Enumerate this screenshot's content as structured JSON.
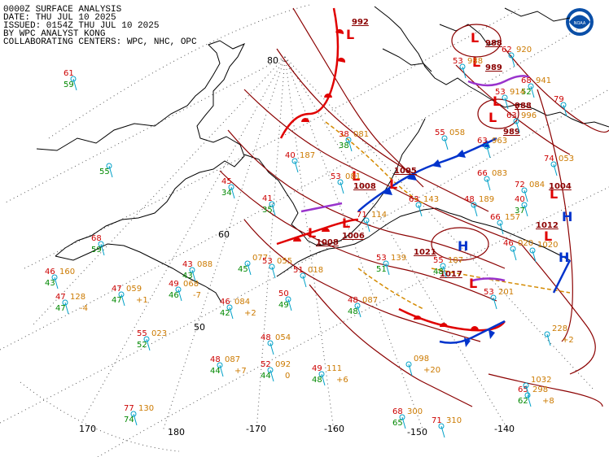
{
  "header": {
    "line1": "0000Z SURFACE ANALYSIS",
    "line2": "DATE: THU JUL 10 2025",
    "line3": "ISSUED: 0154Z THU JUL 10 2025",
    "line4": "BY WPC ANALYST KONG",
    "line5": "COLLABORATING CENTERS: WPC, NHC, OPC"
  },
  "logo": {
    "text": "NOAA"
  },
  "grid_labels": {
    "lat80": "80",
    "lat60": "60",
    "lat50": "50",
    "lon170": "170",
    "lon180": "180",
    "lonm170": "-170",
    "lonm160": "-160",
    "lonm150": "-150",
    "lonm140": "-140"
  },
  "colors": {
    "isobar": "#8b0000",
    "warm_front": "#e00000",
    "cold_front": "#0033cc",
    "occluded_front": "#9933cc",
    "trough": "#d48a00",
    "temp": "#cc0000",
    "dewpoint": "#008800",
    "pressure_obs": "#cc7a00",
    "wind": "#00a0c8"
  },
  "centers": [
    {
      "type": "L",
      "color": "#e00000",
      "pressure": "992"
    },
    {
      "type": "L",
      "color": "#e00000",
      "pressure": "988"
    },
    {
      "type": "L",
      "color": "#e00000",
      "pressure": "989"
    },
    {
      "type": "L",
      "color": "#e00000",
      "pressure": "988"
    },
    {
      "type": "L",
      "color": "#e00000",
      "pressure": "989"
    },
    {
      "type": "L",
      "color": "#e00000",
      "pressure": "1005"
    },
    {
      "type": "L",
      "color": "#e00000",
      "pressure": "1008"
    },
    {
      "type": "L",
      "color": "#e00000",
      "pressure": "1006"
    },
    {
      "type": "L",
      "color": "#e00000",
      "pressure": "1008"
    },
    {
      "type": "L",
      "color": "#e00000",
      "pressure": "1004"
    },
    {
      "type": "L",
      "color": "#e00000",
      "pressure": "1012"
    },
    {
      "type": "L",
      "color": "#e00000",
      "pressure": "1017"
    },
    {
      "type": "H",
      "color": "#0033cc",
      "pressure": "1021"
    },
    {
      "type": "H",
      "color": "#0033cc",
      "pressure": ""
    },
    {
      "type": "H",
      "color": "#0033cc",
      "pressure": ""
    }
  ],
  "obs": [
    {
      "t": "61",
      "d": "59"
    },
    {
      "t": "",
      "d": "55",
      "p": ""
    },
    {
      "t": "68",
      "d": "59"
    },
    {
      "t": "46",
      "p": "160",
      "d": "43"
    },
    {
      "t": "47",
      "p": "128",
      "d": "47",
      "tend": "-4"
    },
    {
      "t": "47",
      "p": "059",
      "d": "47",
      "tend": "+1"
    },
    {
      "t": "49",
      "p": "068",
      "d": "46",
      "tend": "-7"
    },
    {
      "t": "43",
      "p": "088",
      "d": "43"
    },
    {
      "t": "46",
      "p": "084",
      "d": "42",
      "tend": "+2"
    },
    {
      "t": "",
      "p": "077",
      "d": "45"
    },
    {
      "t": "53",
      "p": "055",
      "d": ""
    },
    {
      "t": "51",
      "p": "018",
      "d": ""
    },
    {
      "t": "50",
      "d": "49"
    },
    {
      "t": "55",
      "p": "023",
      "d": "52"
    },
    {
      "t": "48",
      "p": "087",
      "d": "44",
      "tend": "+7"
    },
    {
      "t": "48",
      "p": "054",
      "d": ""
    },
    {
      "t": "52",
      "p": "092",
      "d": "44",
      "tend": "0"
    },
    {
      "t": "49",
      "p": "111",
      "d": "48",
      "tend": "+6"
    },
    {
      "t": "48",
      "p": "087",
      "d": "48"
    },
    {
      "t": "53",
      "p": "139",
      "d": "51"
    },
    {
      "t": "",
      "p": "098",
      "d": "",
      "tend": "+20"
    },
    {
      "t": "77",
      "p": "130",
      "d": "74"
    },
    {
      "t": "68",
      "p": "300",
      "d": "65"
    },
    {
      "t": "71",
      "p": "310",
      "d": ""
    },
    {
      "t": "65",
      "p": "298",
      "d": "62",
      "tend": "+8"
    },
    {
      "t": "",
      "p": "1032",
      "d": ""
    },
    {
      "t": "",
      "p": "228",
      "d": "",
      "tend": "+2"
    },
    {
      "t": "40",
      "p": "187",
      "d": ""
    },
    {
      "t": "38",
      "p": "081",
      "d": "38"
    },
    {
      "t": "45",
      "d": "34"
    },
    {
      "t": "41",
      "d": "35"
    },
    {
      "t": "53",
      "p": "081",
      "d": ""
    },
    {
      "t": "71",
      "p": "114",
      "d": ""
    },
    {
      "t": "63",
      "p": "143",
      "d": ""
    },
    {
      "t": "48",
      "p": "189",
      "d": ""
    },
    {
      "t": "66",
      "p": "157",
      "d": ""
    },
    {
      "t": "55",
      "p": "187",
      "d": "48"
    },
    {
      "t": "53",
      "p": "201",
      "d": ""
    },
    {
      "t": "66",
      "p": "083",
      "d": ""
    },
    {
      "t": "72",
      "p": "084",
      "d": ""
    },
    {
      "t": "74",
      "p": "053",
      "d": ""
    },
    {
      "t": "63",
      "p": "963",
      "d": ""
    },
    {
      "t": "55",
      "p": "058",
      "d": ""
    },
    {
      "t": "63",
      "p": "996",
      "d": ""
    },
    {
      "t": "79",
      "d": ""
    },
    {
      "t": "68",
      "p": "941",
      "d": "52"
    },
    {
      "t": "53",
      "p": "914",
      "d": ""
    },
    {
      "t": "53",
      "p": "988",
      "d": ""
    },
    {
      "t": "62",
      "p": "920",
      "d": ""
    },
    {
      "t": "46",
      "p": "020",
      "d": ""
    },
    {
      "t": "40",
      "d": "37"
    },
    {
      "t": "",
      "p": "1020",
      "d": ""
    }
  ]
}
